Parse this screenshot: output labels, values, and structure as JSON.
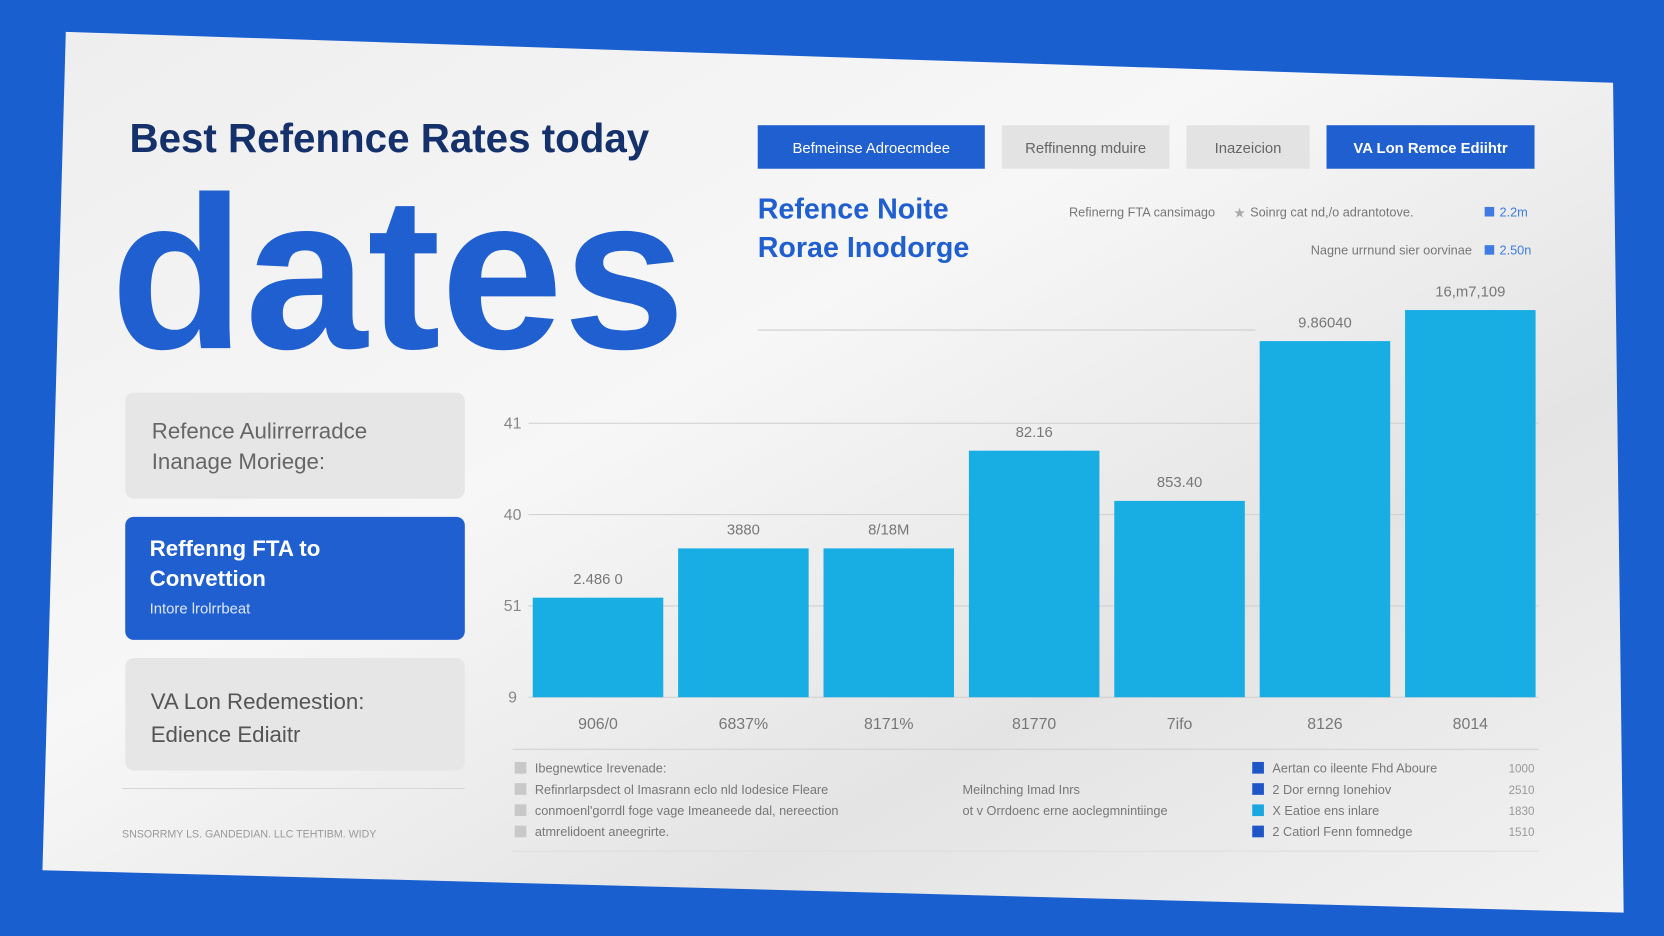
{
  "header": {
    "title": "Best Refennce Rates today",
    "headline": "dates"
  },
  "tabs": [
    "Befmeinse Adroecmdee",
    "Reffinenng mduire",
    "Inazeicion",
    "VA Lon Remce Ediihtr"
  ],
  "sidebar": {
    "cards": [
      {
        "lines": [
          "Refence Aulirrerradce",
          "Inanage Moriege:"
        ]
      },
      {
        "lines": [
          "Reffenng FTA to",
          "Convettion"
        ],
        "caption": "Intore lrolrrbeat"
      },
      {
        "lines": [
          "VA Lon Redemestion:",
          "Edience Ediaitr"
        ]
      }
    ],
    "footer": "SNSORRMY LS. GANDEDIAN. LLC TEHTIBM. WIDY"
  },
  "top_legend": [
    {
      "label": "Refinerng FTA cansimago",
      "sublabel": "Soinrg cat nd,/o adrantotove.",
      "value": "2.2m"
    },
    {
      "label": "Nagne urrnund sier oorvinae",
      "value": "2.50n"
    }
  ],
  "chart_data": {
    "type": "bar",
    "title": [
      "Refence Noite",
      "Rorae Inodorge"
    ],
    "categories": [
      "906/0",
      "6837%",
      "8171%",
      "81770",
      "7ifo",
      "8126",
      "8014"
    ],
    "values": [
      1.09,
      1.63,
      1.63,
      2.7,
      2.15,
      3.9,
      4.24
    ],
    "annotations": [
      "2.486 0",
      "3880",
      "8/18M",
      "82.16",
      "853.40",
      "9.86040",
      "16,m7,109"
    ],
    "color": "#18aee4",
    "ylim": [
      0,
      4.3
    ],
    "yticks": [
      {
        "value": 0,
        "label": "9"
      },
      {
        "value": 1,
        "label": "51"
      },
      {
        "value": 2,
        "label": "40"
      },
      {
        "value": 3,
        "label": "41"
      }
    ],
    "grid": true
  },
  "bottom_legend": {
    "notes": [
      "Ibegnewtice Irevenade:",
      "Refinrlarpsdect ol Imasrann eclo nld Iodesice Fleare",
      "conmoenl'gorrdl foge vage Imeaneede dal, nereection",
      "atmrelidoent aneegrirte."
    ],
    "middle": [
      "Meilnching Imad Inrs",
      "ot v Orrdoenc erne aoclegmnintiinge"
    ],
    "items": [
      {
        "label": "Aertan co ileente Fhd Aboure",
        "value": "1000",
        "color": "#1e56c8"
      },
      {
        "label": "2 Dor ernng Ionehiov",
        "value": "2510",
        "color": "#1e56c8"
      },
      {
        "label": "X Eatioe ens inlare",
        "value": "1830",
        "color": "#1aa7e0"
      },
      {
        "label": "2 Catiorl Fenn fomnedge",
        "value": "1510",
        "color": "#1e56c8"
      }
    ]
  }
}
